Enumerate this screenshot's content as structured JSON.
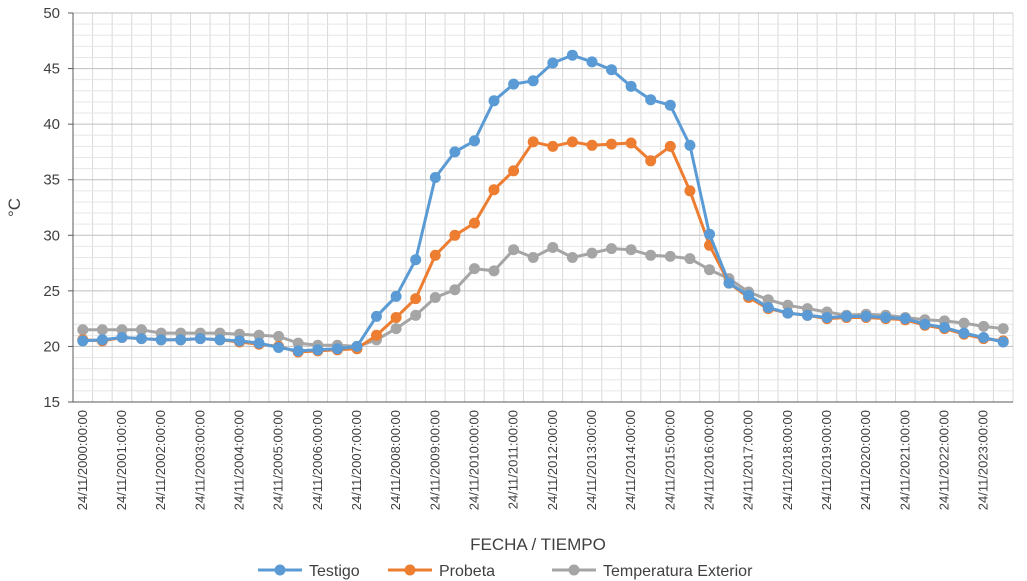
{
  "chart_data": {
    "type": "line",
    "title": "",
    "xlabel": "FECHA / TIEMPO",
    "ylabel": "°C",
    "ylim": [
      15,
      50
    ],
    "y_ticks": [
      15,
      20,
      25,
      30,
      35,
      40,
      45,
      50
    ],
    "grid": true,
    "legend_position": "bottom",
    "x_tick_labels": [
      "24/11/2000:00:00",
      "24/11/2001:00:00",
      "24/11/2002:00:00",
      "24/11/2003:00:00",
      "24/11/2004:00:00",
      "24/11/2005:00:00",
      "24/11/2006:00:00",
      "24/11/2007:00:00",
      "24/11/2008:00:00",
      "24/11/2009:00:00",
      "24/11/2010:00:00",
      "24/11/2011:00:00",
      "24/11/2012:00:00",
      "24/11/2013:00:00",
      "24/11/2014:00:00",
      "24/11/2015:00:00",
      "24/11/2016:00:00",
      "24/11/2017:00:00",
      "24/11/2018:00:00",
      "24/11/2019:00:00",
      "24/11/2020:00:00",
      "24/11/2021:00:00",
      "24/11/2022:00:00",
      "24/11/2023:00:00"
    ],
    "points_per_label": 2,
    "series": [
      {
        "name": "Testigo",
        "color": "#5B9BD5",
        "values": [
          20.5,
          20.6,
          20.8,
          20.7,
          20.6,
          20.6,
          20.7,
          20.6,
          20.5,
          20.3,
          19.9,
          19.6,
          19.7,
          19.8,
          20.0,
          22.7,
          24.5,
          27.8,
          35.2,
          37.5,
          38.5,
          42.1,
          43.6,
          43.9,
          45.5,
          46.2,
          45.6,
          44.9,
          43.4,
          42.2,
          41.7,
          38.1,
          30.1,
          25.7,
          24.6,
          23.5,
          23.0,
          22.8,
          22.6,
          22.7,
          22.7,
          22.6,
          22.5,
          22.0,
          21.7,
          21.2,
          20.8,
          20.4
        ]
      },
      {
        "name": "Probeta",
        "color": "#ED7D31",
        "values": [
          20.6,
          20.5,
          20.8,
          20.7,
          20.6,
          20.6,
          20.7,
          20.6,
          20.4,
          20.2,
          20.0,
          19.5,
          19.6,
          19.7,
          19.8,
          21.0,
          22.6,
          24.3,
          28.2,
          30.0,
          31.1,
          34.1,
          35.8,
          38.4,
          38.0,
          38.4,
          38.1,
          38.2,
          38.3,
          36.7,
          38.0,
          34.0,
          29.1,
          25.7,
          24.4,
          23.4,
          23.0,
          22.8,
          22.5,
          22.6,
          22.6,
          22.5,
          22.4,
          21.9,
          21.6,
          21.1,
          20.7,
          20.5
        ]
      },
      {
        "name": "Temperatura Exterior",
        "color": "#A5A5A5",
        "values": [
          21.5,
          21.5,
          21.5,
          21.5,
          21.2,
          21.2,
          21.2,
          21.2,
          21.1,
          21.0,
          20.9,
          20.3,
          20.1,
          20.1,
          20.0,
          20.6,
          21.6,
          22.8,
          24.4,
          25.1,
          27.0,
          26.8,
          28.7,
          28.0,
          28.9,
          28.0,
          28.4,
          28.8,
          28.7,
          28.2,
          28.1,
          27.9,
          26.9,
          26.1,
          24.9,
          24.2,
          23.7,
          23.4,
          23.1,
          22.8,
          22.9,
          22.8,
          22.6,
          22.4,
          22.3,
          22.1,
          21.8,
          21.6
        ]
      }
    ]
  }
}
